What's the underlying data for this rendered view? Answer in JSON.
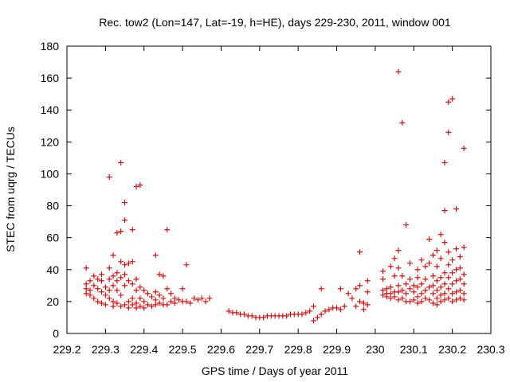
{
  "chart_data": {
    "type": "scatter",
    "title": "Rec. tow2 (Lon=147, Lat=-19, h=HE), days 229-230, 2011, window 001",
    "xlabel": "GPS time / Days of year 2011",
    "ylabel": "STEC from uqrg / TECUs",
    "xlim": [
      229.2,
      230.3
    ],
    "ylim": [
      0,
      180
    ],
    "xticks": [
      229.2,
      229.3,
      229.4,
      229.5,
      229.6,
      229.7,
      229.8,
      229.9,
      230.0,
      230.1,
      230.2,
      230.3
    ],
    "xtick_labels": [
      "229.2",
      "229.3",
      "229.4",
      "229.5",
      "229.6",
      "229.7",
      "229.8",
      "229.9",
      "230",
      "230.1",
      "230.2",
      "230.3"
    ],
    "yticks": [
      0,
      20,
      40,
      60,
      80,
      100,
      120,
      140,
      160,
      180
    ],
    "ytick_labels": [
      "0",
      "20",
      "40",
      "60",
      "80",
      "100",
      "120",
      "140",
      "160",
      "180"
    ],
    "grid": false,
    "legend": false,
    "marker": "+",
    "marker_color": "#cc0000",
    "points": [
      [
        229.25,
        41
      ],
      [
        229.25,
        31
      ],
      [
        229.25,
        28
      ],
      [
        229.25,
        25
      ],
      [
        229.26,
        33
      ],
      [
        229.26,
        27
      ],
      [
        229.26,
        24
      ],
      [
        229.27,
        36
      ],
      [
        229.27,
        30
      ],
      [
        229.27,
        22
      ],
      [
        229.28,
        34
      ],
      [
        229.28,
        28
      ],
      [
        229.28,
        20
      ],
      [
        229.29,
        37
      ],
      [
        229.29,
        33
      ],
      [
        229.29,
        26
      ],
      [
        229.29,
        19
      ],
      [
        229.3,
        29
      ],
      [
        229.3,
        24
      ],
      [
        229.3,
        18
      ],
      [
        229.31,
        98
      ],
      [
        229.31,
        41
      ],
      [
        229.31,
        34
      ],
      [
        229.31,
        27
      ],
      [
        229.31,
        22
      ],
      [
        229.32,
        49
      ],
      [
        229.32,
        36
      ],
      [
        229.32,
        30
      ],
      [
        229.32,
        20
      ],
      [
        229.32,
        17
      ],
      [
        229.33,
        63
      ],
      [
        229.33,
        38
      ],
      [
        229.33,
        33
      ],
      [
        229.33,
        27
      ],
      [
        229.33,
        19
      ],
      [
        229.34,
        107
      ],
      [
        229.34,
        64
      ],
      [
        229.34,
        45
      ],
      [
        229.34,
        35
      ],
      [
        229.34,
        24
      ],
      [
        229.34,
        17
      ],
      [
        229.35,
        82
      ],
      [
        229.35,
        71
      ],
      [
        229.35,
        43
      ],
      [
        229.35,
        37
      ],
      [
        229.35,
        30
      ],
      [
        229.35,
        18
      ],
      [
        229.36,
        44
      ],
      [
        229.36,
        33
      ],
      [
        229.36,
        20
      ],
      [
        229.36,
        16
      ],
      [
        229.37,
        65
      ],
      [
        229.37,
        45
      ],
      [
        229.37,
        31
      ],
      [
        229.37,
        22
      ],
      [
        229.37,
        18
      ],
      [
        229.38,
        92
      ],
      [
        229.38,
        34
      ],
      [
        229.38,
        27
      ],
      [
        229.38,
        19
      ],
      [
        229.38,
        16
      ],
      [
        229.39,
        93
      ],
      [
        229.39,
        29
      ],
      [
        229.39,
        22
      ],
      [
        229.39,
        17
      ],
      [
        229.4,
        27
      ],
      [
        229.4,
        20
      ],
      [
        229.4,
        16
      ],
      [
        229.41,
        25
      ],
      [
        229.41,
        18
      ],
      [
        229.42,
        23
      ],
      [
        229.42,
        17
      ],
      [
        229.43,
        49
      ],
      [
        229.43,
        26
      ],
      [
        229.43,
        21
      ],
      [
        229.43,
        18
      ],
      [
        229.44,
        37
      ],
      [
        229.44,
        24
      ],
      [
        229.44,
        19
      ],
      [
        229.45,
        36
      ],
      [
        229.45,
        22
      ],
      [
        229.45,
        18
      ],
      [
        229.46,
        65
      ],
      [
        229.46,
        28
      ],
      [
        229.46,
        18
      ],
      [
        229.47,
        25
      ],
      [
        229.47,
        20
      ],
      [
        229.48,
        22
      ],
      [
        229.48,
        19
      ],
      [
        229.49,
        21
      ],
      [
        229.5,
        28
      ],
      [
        229.5,
        20
      ],
      [
        229.51,
        43
      ],
      [
        229.51,
        20
      ],
      [
        229.52,
        19
      ],
      [
        229.53,
        22
      ],
      [
        229.54,
        21
      ],
      [
        229.55,
        22
      ],
      [
        229.56,
        20
      ],
      [
        229.57,
        22
      ],
      [
        229.62,
        14
      ],
      [
        229.63,
        13
      ],
      [
        229.64,
        13
      ],
      [
        229.65,
        12
      ],
      [
        229.66,
        12
      ],
      [
        229.67,
        11
      ],
      [
        229.68,
        11
      ],
      [
        229.69,
        10
      ],
      [
        229.7,
        10
      ],
      [
        229.71,
        10
      ],
      [
        229.72,
        11
      ],
      [
        229.73,
        11
      ],
      [
        229.74,
        11
      ],
      [
        229.75,
        11
      ],
      [
        229.76,
        11
      ],
      [
        229.77,
        11
      ],
      [
        229.78,
        12
      ],
      [
        229.79,
        12
      ],
      [
        229.8,
        12
      ],
      [
        229.81,
        12
      ],
      [
        229.82,
        13
      ],
      [
        229.83,
        14
      ],
      [
        229.84,
        17
      ],
      [
        229.84,
        8
      ],
      [
        229.85,
        10
      ],
      [
        229.86,
        28
      ],
      [
        229.86,
        12
      ],
      [
        229.87,
        14
      ],
      [
        229.88,
        15
      ],
      [
        229.89,
        16
      ],
      [
        229.9,
        16
      ],
      [
        229.91,
        15
      ],
      [
        229.92,
        17
      ],
      [
        229.91,
        28
      ],
      [
        229.93,
        25
      ],
      [
        229.94,
        22
      ],
      [
        229.95,
        28
      ],
      [
        229.95,
        17
      ],
      [
        229.96,
        51
      ],
      [
        229.96,
        30
      ],
      [
        229.96,
        20
      ],
      [
        229.97,
        19
      ],
      [
        229.97,
        15
      ],
      [
        229.98,
        33
      ],
      [
        229.98,
        26
      ],
      [
        229.98,
        18
      ],
      [
        230.02,
        39
      ],
      [
        230.02,
        34
      ],
      [
        230.02,
        27
      ],
      [
        230.02,
        24
      ],
      [
        230.03,
        28
      ],
      [
        230.03,
        25
      ],
      [
        230.03,
        23
      ],
      [
        230.04,
        42
      ],
      [
        230.04,
        29
      ],
      [
        230.04,
        25
      ],
      [
        230.04,
        22
      ],
      [
        230.05,
        47
      ],
      [
        230.05,
        36
      ],
      [
        230.05,
        26
      ],
      [
        230.05,
        23
      ],
      [
        230.06,
        164
      ],
      [
        230.06,
        52
      ],
      [
        230.06,
        41
      ],
      [
        230.06,
        30
      ],
      [
        230.06,
        26
      ],
      [
        230.06,
        21
      ],
      [
        230.07,
        132
      ],
      [
        230.07,
        36
      ],
      [
        230.07,
        27
      ],
      [
        230.07,
        22
      ],
      [
        230.08,
        68
      ],
      [
        230.08,
        31
      ],
      [
        230.08,
        25
      ],
      [
        230.08,
        20
      ],
      [
        230.09,
        44
      ],
      [
        230.09,
        34
      ],
      [
        230.09,
        28
      ],
      [
        230.09,
        20
      ],
      [
        230.1,
        30
      ],
      [
        230.1,
        26
      ],
      [
        230.1,
        21
      ],
      [
        230.11,
        40
      ],
      [
        230.11,
        35
      ],
      [
        230.11,
        29
      ],
      [
        230.11,
        23
      ],
      [
        230.11,
        19
      ],
      [
        230.12,
        46
      ],
      [
        230.12,
        31
      ],
      [
        230.12,
        25
      ],
      [
        230.12,
        20
      ],
      [
        230.13,
        42
      ],
      [
        230.13,
        34
      ],
      [
        230.13,
        27
      ],
      [
        230.13,
        22
      ],
      [
        230.14,
        59
      ],
      [
        230.14,
        44
      ],
      [
        230.14,
        29
      ],
      [
        230.14,
        21
      ],
      [
        230.15,
        49
      ],
      [
        230.15,
        36
      ],
      [
        230.15,
        30
      ],
      [
        230.15,
        25
      ],
      [
        230.15,
        19
      ],
      [
        230.16,
        52
      ],
      [
        230.16,
        42
      ],
      [
        230.16,
        33
      ],
      [
        230.16,
        27
      ],
      [
        230.16,
        22
      ],
      [
        230.16,
        18
      ],
      [
        230.17,
        62
      ],
      [
        230.17,
        47
      ],
      [
        230.17,
        35
      ],
      [
        230.17,
        29
      ],
      [
        230.17,
        24
      ],
      [
        230.17,
        20
      ],
      [
        230.18,
        107
      ],
      [
        230.18,
        77
      ],
      [
        230.18,
        57
      ],
      [
        230.18,
        38
      ],
      [
        230.18,
        31
      ],
      [
        230.18,
        25
      ],
      [
        230.18,
        21
      ],
      [
        230.19,
        145
      ],
      [
        230.19,
        126
      ],
      [
        230.19,
        51
      ],
      [
        230.19,
        43
      ],
      [
        230.19,
        35
      ],
      [
        230.19,
        28
      ],
      [
        230.19,
        22
      ],
      [
        230.2,
        147
      ],
      [
        230.2,
        46
      ],
      [
        230.2,
        38
      ],
      [
        230.2,
        31
      ],
      [
        230.2,
        25
      ],
      [
        230.2,
        20
      ],
      [
        230.21,
        78
      ],
      [
        230.21,
        53
      ],
      [
        230.21,
        40
      ],
      [
        230.21,
        33
      ],
      [
        230.21,
        26
      ],
      [
        230.21,
        21
      ],
      [
        230.22,
        48
      ],
      [
        230.22,
        41
      ],
      [
        230.22,
        34
      ],
      [
        230.22,
        27
      ],
      [
        230.22,
        22
      ],
      [
        230.23,
        116
      ],
      [
        230.23,
        54
      ],
      [
        230.23,
        37
      ],
      [
        230.23,
        31
      ],
      [
        230.23,
        25
      ],
      [
        230.23,
        21
      ]
    ]
  }
}
